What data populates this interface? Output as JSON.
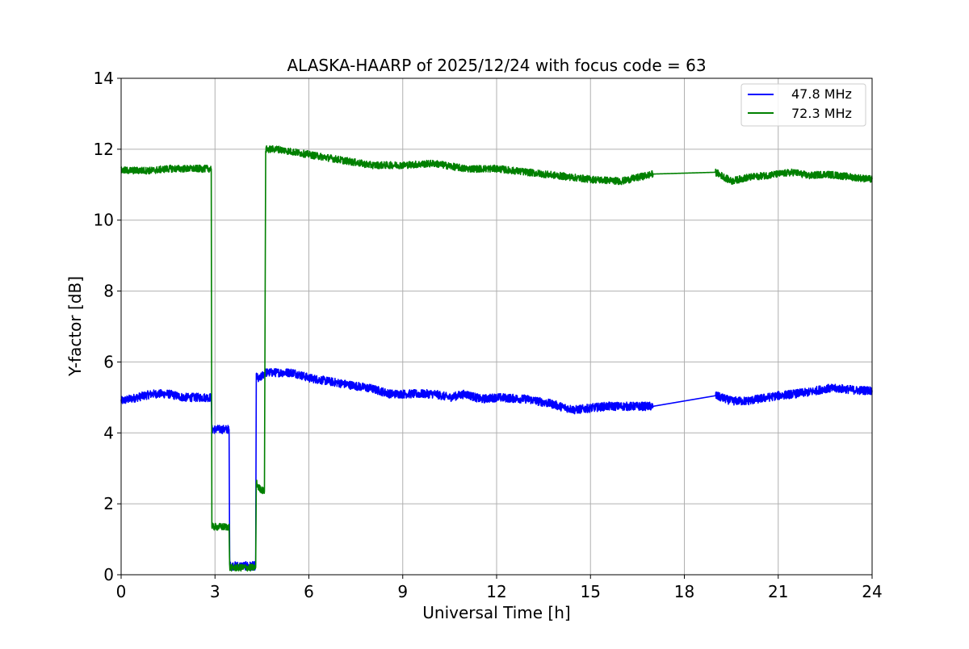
{
  "chart_data": {
    "type": "line",
    "title": "ALASKA-HAARP of 2025/12/24 with focus code = 63",
    "xlabel": "Universal Time [h]",
    "ylabel": "Y-factor [dB]",
    "xlim": [
      0,
      24
    ],
    "ylim": [
      0,
      14
    ],
    "x_ticks": [
      0,
      3,
      6,
      9,
      12,
      15,
      18,
      21,
      24
    ],
    "x_tick_labels": [
      "0",
      "3",
      "6",
      "9",
      "12",
      "15",
      "18",
      "21",
      "24"
    ],
    "y_ticks": [
      0,
      2,
      4,
      6,
      8,
      10,
      12,
      14
    ],
    "y_tick_labels": [
      "0",
      "2",
      "4",
      "6",
      "8",
      "10",
      "12",
      "14"
    ],
    "grid": true,
    "legend_position": "top-right",
    "series": [
      {
        "name": "47.8 MHz",
        "color": "#0000ff",
        "noise": 0.12,
        "x": [
          0,
          0.5,
          1.0,
          1.5,
          2.0,
          2.5,
          2.88,
          2.9,
          3.0,
          3.2,
          3.45,
          3.47,
          3.6,
          4.0,
          4.3,
          4.32,
          4.4,
          4.6,
          5.0,
          5.5,
          6.0,
          7.0,
          8.0,
          8.6,
          9.0,
          10.0,
          10.5,
          11.0,
          11.5,
          12.0,
          13.0,
          13.85,
          14.0,
          14.5,
          15.0,
          15.5,
          16.0,
          16.5,
          17.0,
          19.0,
          19.5,
          20.0,
          21.0,
          22.0,
          22.5,
          23.0,
          23.5,
          24.0
        ],
        "y": [
          4.9,
          5.0,
          5.1,
          5.1,
          5.0,
          5.0,
          5.0,
          4.1,
          4.1,
          4.1,
          4.1,
          0.25,
          0.25,
          0.25,
          0.25,
          5.6,
          5.5,
          5.7,
          5.7,
          5.7,
          5.55,
          5.4,
          5.25,
          5.1,
          5.1,
          5.1,
          5.0,
          5.1,
          4.95,
          5.0,
          4.95,
          4.8,
          4.75,
          4.65,
          4.7,
          4.75,
          4.75,
          4.75,
          4.75,
          5.05,
          4.9,
          4.9,
          5.05,
          5.15,
          5.25,
          5.25,
          5.2,
          5.2
        ]
      },
      {
        "name": "72.3 MHz",
        "color": "#008000",
        "noise": 0.1,
        "x": [
          0,
          0.5,
          1.0,
          1.5,
          2.0,
          2.5,
          2.88,
          2.9,
          3.0,
          3.2,
          3.45,
          3.47,
          3.6,
          4.0,
          4.3,
          4.32,
          4.4,
          4.58,
          4.62,
          5.0,
          6.0,
          7.0,
          8.0,
          9.0,
          10.0,
          11.0,
          12.0,
          13.0,
          14.0,
          15.0,
          16.0,
          17.0,
          19.0,
          19.5,
          20.0,
          21.0,
          21.5,
          22.0,
          22.5,
          23.0,
          23.5,
          24.0
        ],
        "y": [
          11.4,
          11.4,
          11.4,
          11.45,
          11.45,
          11.45,
          11.45,
          1.35,
          1.35,
          1.35,
          1.35,
          0.2,
          0.2,
          0.2,
          0.2,
          2.6,
          2.45,
          2.35,
          12.0,
          12.0,
          11.85,
          11.7,
          11.55,
          11.55,
          11.6,
          11.45,
          11.45,
          11.35,
          11.25,
          11.15,
          11.1,
          11.3,
          11.35,
          11.1,
          11.2,
          11.3,
          11.35,
          11.25,
          11.3,
          11.25,
          11.2,
          11.15
        ]
      }
    ],
    "annotations": []
  }
}
